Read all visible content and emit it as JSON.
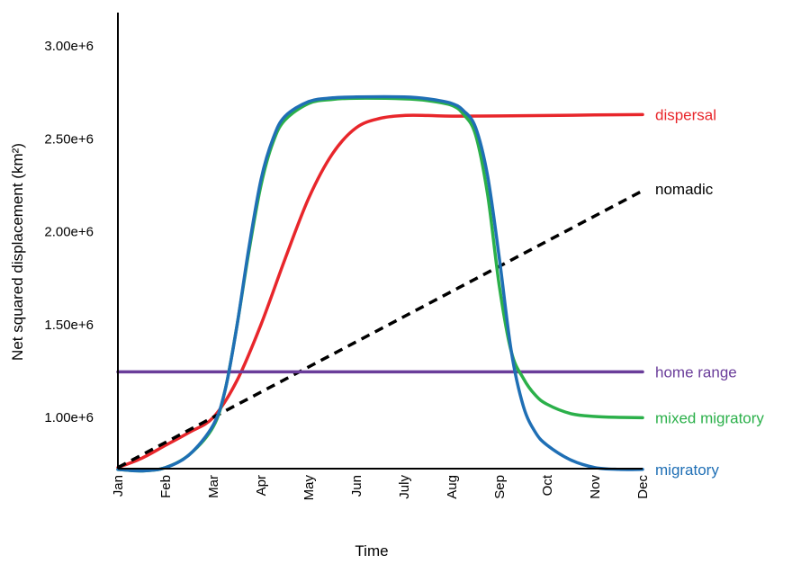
{
  "chart_data": {
    "type": "line",
    "xlabel": "Time",
    "ylabel": "Net squared displacement (km²)",
    "x_categories": [
      "Jan",
      "Feb",
      "Mar",
      "Apr",
      "May",
      "Jun",
      "July",
      "Aug",
      "Sep",
      "Oct",
      "Nov",
      "Dec"
    ],
    "y_ticks": [
      1000000,
      1500000,
      2000000,
      2500000,
      3000000
    ],
    "y_tick_labels": [
      "1.00e+6",
      "1.50e+6",
      "2.00e+6",
      "2.50e+6",
      "3.00e+6"
    ],
    "ylim": [
      720000,
      3300000
    ],
    "grid": false,
    "legend": "inline labels at right end of each line",
    "series": [
      {
        "name": "dispersal",
        "color": "#e8262b",
        "style": "solid",
        "x": [
          0,
          0.5,
          1,
          1.5,
          2,
          2.5,
          3,
          3.5,
          4,
          4.5,
          5,
          5.5,
          6,
          6.5,
          7,
          8,
          9,
          10,
          11
        ],
        "y": [
          730000,
          780000,
          850000,
          920000,
          1000000,
          1200000,
          1500000,
          1850000,
          2180000,
          2420000,
          2560000,
          2610000,
          2625000,
          2625000,
          2622000,
          2623000,
          2625000,
          2628000,
          2630000
        ]
      },
      {
        "name": "nomadic",
        "color": "#000000",
        "style": "dashed",
        "x": [
          0,
          11
        ],
        "y": [
          730000,
          2220000
        ]
      },
      {
        "name": "home range",
        "color": "#6a3d9a",
        "style": "solid",
        "x": [
          0,
          11
        ],
        "y": [
          1245000,
          1245000
        ]
      },
      {
        "name": "mixed migratory",
        "color": "#2bb04a",
        "style": "solid",
        "x": [
          0,
          0.5,
          1,
          1.5,
          2,
          2.25,
          2.5,
          2.75,
          3,
          3.25,
          3.5,
          4,
          4.5,
          5,
          6,
          6.5,
          7,
          7.25,
          7.5,
          7.75,
          8,
          8.25,
          8.5,
          8.75,
          9,
          9.5,
          10,
          10.5,
          11
        ],
        "y": [
          720000,
          712000,
          730000,
          800000,
          950000,
          1150000,
          1500000,
          1900000,
          2250000,
          2480000,
          2600000,
          2690000,
          2712000,
          2718000,
          2715000,
          2705000,
          2680000,
          2630000,
          2520000,
          2200000,
          1700000,
          1350000,
          1210000,
          1120000,
          1070000,
          1020000,
          1005000,
          1000000,
          998000
        ]
      },
      {
        "name": "migratory",
        "color": "#1f6fb5",
        "style": "solid",
        "x": [
          0,
          0.5,
          1,
          1.5,
          2,
          2.25,
          2.5,
          2.75,
          3,
          3.25,
          3.5,
          4,
          4.5,
          5,
          6,
          6.5,
          7,
          7.25,
          7.5,
          7.75,
          8,
          8.25,
          8.5,
          8.75,
          9,
          9.5,
          10,
          10.5,
          11
        ],
        "y": [
          720000,
          712000,
          730000,
          800000,
          960000,
          1150000,
          1500000,
          1920000,
          2280000,
          2500000,
          2620000,
          2700000,
          2720000,
          2725000,
          2725000,
          2715000,
          2690000,
          2650000,
          2560000,
          2300000,
          1850000,
          1350000,
          1060000,
          920000,
          850000,
          770000,
          730000,
          720000,
          720000
        ]
      }
    ]
  }
}
